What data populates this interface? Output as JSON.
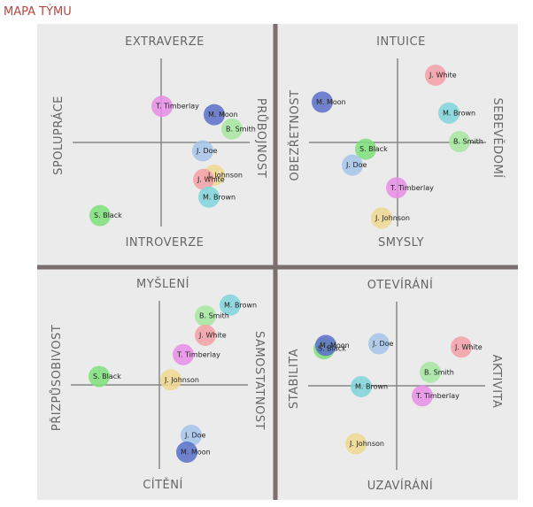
{
  "title": "MAPA TÝMU",
  "chart_data": [
    {
      "type": "scatter",
      "top_label": "EXTRAVERZE",
      "bottom_label": "INTROVERZE",
      "left_label": "SPOLUPRÁCE",
      "right_label": "PRŮBOJNOST",
      "xlim": [
        -10,
        10
      ],
      "ylim": [
        -10,
        10
      ],
      "points": [
        {
          "name": "T. Timberlay",
          "color": "#e88ee8",
          "x": 0.1,
          "y": 4.3
        },
        {
          "name": "M. Moon",
          "color": "#5b6fc9",
          "x": 6.0,
          "y": 3.3
        },
        {
          "name": "B. Smith",
          "color": "#a6e6a0",
          "x": 8.0,
          "y": 1.6
        },
        {
          "name": "J. Doe",
          "color": "#a6c4ea",
          "x": 4.7,
          "y": -1.0
        },
        {
          "name": "J. Johnson",
          "color": "#f0d890",
          "x": 6.0,
          "y": -3.9
        },
        {
          "name": "J. White",
          "color": "#f4a0a8",
          "x": 4.8,
          "y": -4.4
        },
        {
          "name": "M. Brown",
          "color": "#7fd6dc",
          "x": 5.4,
          "y": -6.5
        },
        {
          "name": "S. Black",
          "color": "#7ee07a",
          "x": -6.9,
          "y": -8.7
        }
      ]
    },
    {
      "type": "scatter",
      "top_label": "INTUICE",
      "bottom_label": "SMYSLY",
      "left_label": "OBEZŘETNOST",
      "right_label": "SEBEVĚDOMÍ",
      "xlim": [
        -10,
        10
      ],
      "ylim": [
        -10,
        10
      ],
      "points": [
        {
          "name": "J. White",
          "color": "#f4a0a8",
          "x": 4.3,
          "y": 8.0
        },
        {
          "name": "M. Moon",
          "color": "#5b6fc9",
          "x": -8.5,
          "y": 4.8
        },
        {
          "name": "M. Brown",
          "color": "#7fd6dc",
          "x": 5.8,
          "y": 3.5
        },
        {
          "name": "B. Smith",
          "color": "#a6e6a0",
          "x": 7.0,
          "y": 0.1
        },
        {
          "name": "S. Black",
          "color": "#7ee07a",
          "x": -3.6,
          "y": -0.8
        },
        {
          "name": "J. Doe",
          "color": "#a6c4ea",
          "x": -5.1,
          "y": -2.7
        },
        {
          "name": "T. Timberlay",
          "color": "#e88ee8",
          "x": -0.1,
          "y": -5.4
        },
        {
          "name": "J. Johnson",
          "color": "#f0d890",
          "x": -1.8,
          "y": -9.0
        }
      ]
    },
    {
      "type": "scatter",
      "top_label": "MYŠLENÍ",
      "bottom_label": "CÍTĚNÍ",
      "left_label": "PŘIZPŮSOBIVOST",
      "right_label": "SAMOSTATNOST",
      "xlim": [
        -10,
        10
      ],
      "ylim": [
        -10,
        10
      ],
      "points": [
        {
          "name": "M. Brown",
          "color": "#7fd6dc",
          "x": 8.0,
          "y": 9.5
        },
        {
          "name": "B. Smith",
          "color": "#a6e6a0",
          "x": 5.2,
          "y": 8.2
        },
        {
          "name": "J. White",
          "color": "#f4a0a8",
          "x": 5.2,
          "y": 5.9
        },
        {
          "name": "T. Timberlay",
          "color": "#e88ee8",
          "x": 2.7,
          "y": 3.6
        },
        {
          "name": "S. Black",
          "color": "#7ee07a",
          "x": -6.8,
          "y": 1.0
        },
        {
          "name": "J. Johnson",
          "color": "#f0d890",
          "x": 1.3,
          "y": 0.6
        },
        {
          "name": "J. Doe",
          "color": "#a6c4ea",
          "x": 3.6,
          "y": -6.0
        },
        {
          "name": "M. Moon",
          "color": "#5b6fc9",
          "x": 3.1,
          "y": -8.0
        }
      ]
    },
    {
      "type": "scatter",
      "top_label": "OTEVÍRÁNÍ",
      "bottom_label": "UZAVÍRÁNÍ",
      "left_label": "STABILITA",
      "right_label": "AKTIVITA",
      "xlim": [
        -10,
        10
      ],
      "ylim": [
        -10,
        10
      ],
      "points": [
        {
          "name": "S. Black",
          "color": "#7ee07a",
          "x": -8.2,
          "y": 4.4
        },
        {
          "name": "M. Moon",
          "color": "#5b6fc9",
          "x": -8.0,
          "y": 4.8
        },
        {
          "name": "J. Doe",
          "color": "#a6c4ea",
          "x": -2.0,
          "y": 5.0
        },
        {
          "name": "J. White",
          "color": "#f4a0a8",
          "x": 7.3,
          "y": 4.6
        },
        {
          "name": "B. Smith",
          "color": "#a6e6a0",
          "x": 3.8,
          "y": 1.6
        },
        {
          "name": "M. Brown",
          "color": "#7fd6dc",
          "x": -4.0,
          "y": -0.1
        },
        {
          "name": "T. Timberlay",
          "color": "#e88ee8",
          "x": 2.9,
          "y": -1.2
        },
        {
          "name": "J. Johnson",
          "color": "#f0d890",
          "x": -4.6,
          "y": -6.9
        }
      ]
    }
  ]
}
